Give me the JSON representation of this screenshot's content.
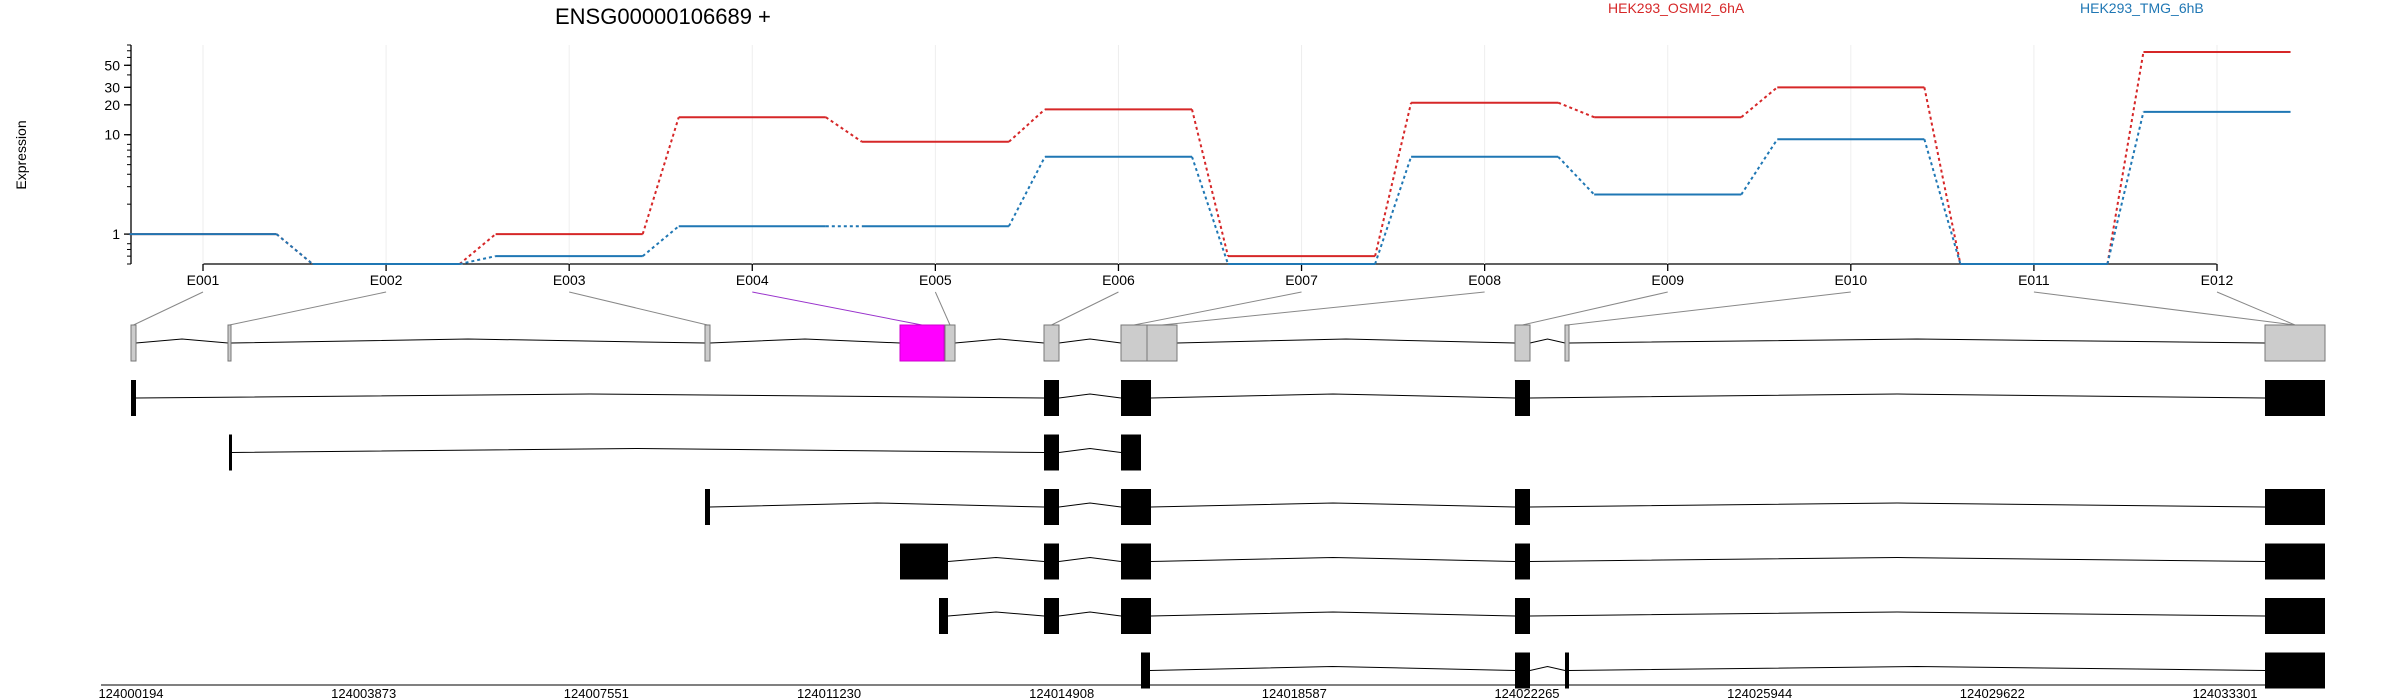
{
  "chart_data": {
    "type": "line",
    "title": "ENSG00000106689 +",
    "ylabel": "Expression",
    "yscale": "log",
    "ylim": [
      0.5,
      80
    ],
    "yticks": [
      "1",
      "10",
      "20",
      "30",
      "50"
    ],
    "categories": [
      "E001",
      "E002",
      "E003",
      "E004",
      "E005",
      "E006",
      "E007",
      "E008",
      "E009",
      "E010",
      "E011",
      "E012"
    ],
    "series": [
      {
        "name": "HEK293_OSMI2_6hA",
        "color": "#d62728",
        "values": [
          1.0,
          0.5,
          1.0,
          15,
          8.5,
          18,
          0.6,
          21,
          15,
          30,
          0.5,
          68
        ]
      },
      {
        "name": "HEK293_TMG_6hB",
        "color": "#1f77b4",
        "values": [
          1.0,
          0.5,
          0.6,
          1.2,
          1.2,
          6.0,
          0.5,
          6.0,
          2.5,
          9.0,
          0.5,
          17
        ]
      }
    ],
    "genomic_ticks": [
      "124000194",
      "124003873",
      "124007551",
      "124011230",
      "124014908",
      "124018587",
      "124022265",
      "124025944",
      "124029622",
      "124033301"
    ],
    "gene_model": {
      "highlighted_exon": "E004",
      "highlight_color": "#ff00ff",
      "exon_fill": "#cccccc",
      "transcript_count": 6
    }
  }
}
